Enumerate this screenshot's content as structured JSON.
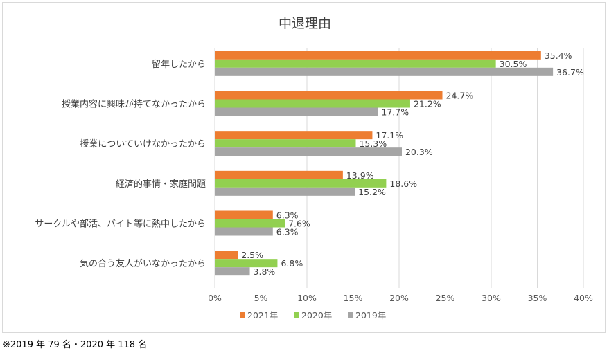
{
  "footnote": "※2019 年 79 名・2020 年 118 名",
  "chart_data": {
    "type": "bar",
    "orientation": "horizontal",
    "title": "中退理由",
    "categories": [
      "留年したから",
      "授業内容に興味が持てなかったから",
      "授業についていけなかったから",
      "経済的事情・家庭問題",
      "サークルや部活、バイト等に熱中したから",
      "気の合う友人がいなかったから"
    ],
    "series": [
      {
        "name": "2021年",
        "color": "#ed7d31",
        "values": [
          35.4,
          24.7,
          17.1,
          13.9,
          6.3,
          2.5
        ]
      },
      {
        "name": "2020年",
        "color": "#92d050",
        "values": [
          30.5,
          21.2,
          15.3,
          18.6,
          7.6,
          6.8
        ]
      },
      {
        "name": "2019年",
        "color": "#a5a5a5",
        "values": [
          36.7,
          17.7,
          20.3,
          15.2,
          6.3,
          3.8
        ]
      }
    ],
    "xlim": [
      0,
      40
    ],
    "xticks": [
      0,
      5,
      10,
      15,
      20,
      25,
      30,
      35,
      40
    ],
    "tick_suffix": "%",
    "value_suffix": "%",
    "grid": true,
    "legend_position": "bottom"
  }
}
